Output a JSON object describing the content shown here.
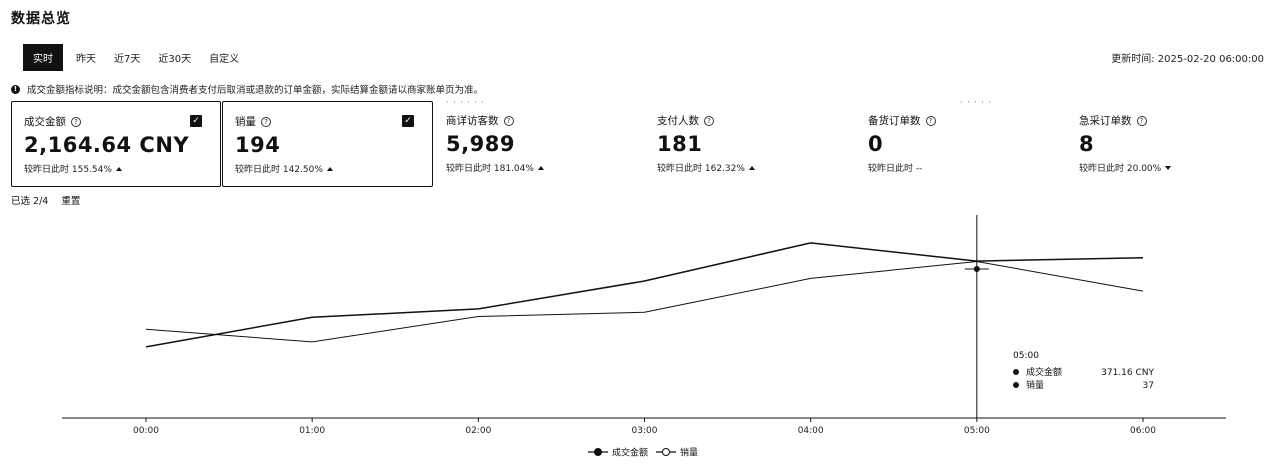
{
  "page": {
    "title": "数据总览"
  },
  "tabs": [
    {
      "label": "实时",
      "active": true
    },
    {
      "label": "昨天"
    },
    {
      "label": "近7天"
    },
    {
      "label": "近30天"
    },
    {
      "label": "自定义"
    }
  ],
  "updated_text": "更新时间: 2025-02-20 06:00:00",
  "notice": "成交金额指标说明：成交金额包含消费者支付后取消或退款的订单金额，实际结算金额请以商家账单页为准。",
  "cards": [
    {
      "label": "成交金额",
      "value": "2,164.64 CNY",
      "compare_prefix": "较昨日此时",
      "compare": "155.54%",
      "trend": "up",
      "checked": true
    },
    {
      "label": "销量",
      "value": "194",
      "compare_prefix": "较昨日此时",
      "compare": "142.50%",
      "trend": "up",
      "checked": true
    },
    {
      "label": "商详访客数",
      "value": "5,989",
      "compare_prefix": "较昨日此时",
      "compare": "181.04%",
      "trend": "up",
      "checked": false
    },
    {
      "label": "支付人数",
      "value": "181",
      "compare_prefix": "较昨日此时",
      "compare": "162.32%",
      "trend": "up",
      "checked": false
    },
    {
      "label": "备货订单数",
      "value": "0",
      "compare_prefix": "较昨日此时",
      "compare": "--",
      "trend": "none",
      "checked": false
    },
    {
      "label": "急采订单数",
      "value": "8",
      "compare_prefix": "较昨日此时",
      "compare": "20.00%",
      "trend": "down",
      "checked": false
    }
  ],
  "selection": {
    "count_text": "已选 2/4",
    "reset_label": "重置"
  },
  "tooltip": {
    "time": "05:00",
    "rows": [
      {
        "label": "成交金额",
        "value": "371.16 CNY"
      },
      {
        "label": "销量",
        "value": "37"
      }
    ]
  },
  "chart_data": {
    "type": "line",
    "x": [
      "00:00",
      "01:00",
      "02:00",
      "03:00",
      "04:00",
      "05:00",
      "06:00"
    ],
    "series": [
      {
        "name": "成交金额",
        "values": [
          168,
          238,
          258,
          324,
          414,
          371,
          379
        ],
        "marker": "filled"
      },
      {
        "name": "销量",
        "values": [
          21,
          18,
          24,
          25,
          33,
          37,
          30
        ],
        "marker": "hollow"
      }
    ],
    "legend": "bottom-center",
    "grid": false,
    "crosshair_x": "05:00"
  }
}
